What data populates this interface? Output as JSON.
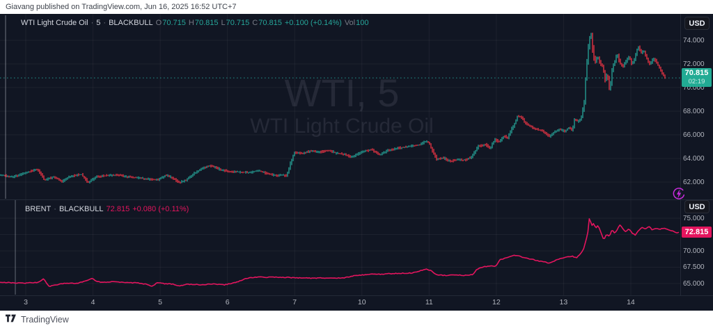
{
  "publisher_bar": {
    "text": "Giavang published on TradingView.com, Jun 16, 2025 16:52 UTC+7"
  },
  "footer": {
    "brand": "TradingView"
  },
  "time_axis": {
    "labels": [
      "3",
      "4",
      "5",
      "6",
      "7",
      "10",
      "11",
      "12",
      "13",
      "14"
    ]
  },
  "colors": {
    "background": "#111623",
    "grid": "rgba(255,255,255,0.05)",
    "up": "#26a69a",
    "down": "#f23645",
    "line": "#e4155e",
    "label_up_bg": "#22ab94",
    "label_line_bg": "#e4155e",
    "axis_text": "#b2b5be",
    "provider_icon": "#c92bdd"
  },
  "panes": {
    "wti": {
      "legend": {
        "symbol": "WTI Light Crude Oil",
        "sep": "·",
        "interval": "5",
        "exchange": "BLACKBULL",
        "o_label": "O",
        "o": "70.715",
        "h_label": "H",
        "h": "70.815",
        "l_label": "L",
        "l": "70.715",
        "c_label": "C",
        "c": "70.815",
        "change": "+0.100 (+0.14%)",
        "vol_label": "Vol",
        "vol": "100"
      },
      "watermark": {
        "line1": "WTI, 5",
        "line2": "WTI Light Crude Oil"
      },
      "axis": {
        "currency": "USD",
        "ticks": [
          "74.000",
          "72.000",
          "70.000",
          "68.000",
          "66.000",
          "64.000",
          "62.000"
        ],
        "last_price": "70.815",
        "countdown": "02:19"
      }
    },
    "brent": {
      "legend": {
        "symbol": "BRENT",
        "sep": "·",
        "exchange": "BLACKBULL",
        "last": "72.815",
        "change": "+0.080 (+0.11%)"
      },
      "axis": {
        "currency": "USD",
        "ticks": [
          "75.000",
          "72.500",
          "70.000",
          "67.500",
          "65.000"
        ],
        "last_price": "72.815"
      }
    }
  },
  "chart_data": [
    {
      "type": "candlestick",
      "name": "WTI Light Crude Oil",
      "interval_minutes": 5,
      "exchange": "BLACKBULL",
      "ohlc": {
        "open": 70.715,
        "high": 70.815,
        "low": 70.715,
        "close": 70.815,
        "change": 0.1,
        "change_pct": 0.14,
        "volume": 100
      },
      "last": 70.815,
      "countdown": "02:19",
      "x_day_labels": [
        "3",
        "4",
        "5",
        "6",
        "7",
        "10",
        "11",
        "12",
        "13",
        "14"
      ],
      "y_ticks": [
        74,
        72,
        70,
        68,
        66,
        64,
        62
      ],
      "ylim": [
        60.5,
        76.2
      ],
      "grid": true,
      "legend_position": "top-left",
      "samples_format": "[trading_day_index, price] where integer indices map to x_day_labels",
      "samples": [
        [
          -0.38,
          62.6
        ],
        [
          -0.18,
          62.45
        ],
        [
          0.03,
          62.8
        ],
        [
          0.19,
          63.1
        ],
        [
          0.29,
          62.15
        ],
        [
          0.43,
          62.45
        ],
        [
          0.55,
          62.05
        ],
        [
          0.68,
          62.5
        ],
        [
          0.84,
          62.65
        ],
        [
          0.94,
          61.95
        ],
        [
          1.07,
          62.45
        ],
        [
          1.22,
          62.55
        ],
        [
          1.38,
          62.6
        ],
        [
          1.53,
          62.45
        ],
        [
          1.69,
          62.35
        ],
        [
          1.84,
          62.25
        ],
        [
          1.98,
          62.2
        ],
        [
          2.1,
          62.6
        ],
        [
          2.23,
          62.25
        ],
        [
          2.29,
          61.95
        ],
        [
          2.39,
          62.15
        ],
        [
          2.52,
          62.75
        ],
        [
          2.67,
          63.25
        ],
        [
          2.78,
          63.4
        ],
        [
          2.91,
          63.05
        ],
        [
          3.03,
          62.9
        ],
        [
          3.19,
          62.85
        ],
        [
          3.35,
          62.8
        ],
        [
          3.47,
          63.0
        ],
        [
          3.6,
          62.7
        ],
        [
          3.74,
          62.55
        ],
        [
          3.84,
          62.6
        ],
        [
          3.89,
          62.5
        ],
        [
          3.95,
          63.6
        ],
        [
          4.01,
          64.5
        ],
        [
          4.13,
          64.4
        ],
        [
          4.26,
          64.65
        ],
        [
          4.38,
          64.5
        ],
        [
          4.5,
          64.7
        ],
        [
          4.63,
          64.45
        ],
        [
          4.75,
          64.35
        ],
        [
          4.87,
          64.1
        ],
        [
          5.0,
          64.55
        ],
        [
          5.16,
          64.75
        ],
        [
          5.28,
          64.3
        ],
        [
          5.4,
          64.7
        ],
        [
          5.52,
          64.85
        ],
        [
          5.64,
          64.95
        ],
        [
          5.78,
          65.1
        ],
        [
          5.88,
          65.15
        ],
        [
          5.95,
          65.45
        ],
        [
          6.01,
          65.35
        ],
        [
          6.06,
          64.7
        ],
        [
          6.12,
          63.95
        ],
        [
          6.22,
          64.05
        ],
        [
          6.33,
          63.75
        ],
        [
          6.43,
          63.9
        ],
        [
          6.53,
          63.85
        ],
        [
          6.64,
          64.1
        ],
        [
          6.74,
          65.0
        ],
        [
          6.85,
          65.2
        ],
        [
          6.92,
          64.85
        ],
        [
          6.99,
          65.6
        ],
        [
          7.05,
          65.4
        ],
        [
          7.13,
          65.9
        ],
        [
          7.18,
          65.7
        ],
        [
          7.24,
          66.5
        ],
        [
          7.29,
          67.0
        ],
        [
          7.33,
          67.6
        ],
        [
          7.38,
          67.5
        ],
        [
          7.46,
          66.9
        ],
        [
          7.54,
          66.65
        ],
        [
          7.62,
          66.45
        ],
        [
          7.71,
          66.3
        ],
        [
          7.8,
          65.85
        ],
        [
          7.87,
          66.2
        ],
        [
          7.95,
          66.45
        ],
        [
          8.03,
          66.3
        ],
        [
          8.09,
          66.6
        ],
        [
          8.14,
          66.4
        ],
        [
          8.18,
          67.35
        ],
        [
          8.23,
          67.1
        ],
        [
          8.27,
          67.3
        ],
        [
          8.32,
          68.8
        ],
        [
          8.35,
          71.5
        ],
        [
          8.38,
          73.4
        ],
        [
          8.42,
          74.75
        ],
        [
          8.45,
          73.0
        ],
        [
          8.48,
          72.1
        ],
        [
          8.52,
          72.7
        ],
        [
          8.56,
          72.0
        ],
        [
          8.6,
          71.8
        ],
        [
          8.63,
          70.6
        ],
        [
          8.66,
          71.2
        ],
        [
          8.7,
          69.6
        ],
        [
          8.74,
          71.8
        ],
        [
          8.78,
          72.3
        ],
        [
          8.81,
          72.9
        ],
        [
          8.85,
          72.1
        ],
        [
          8.9,
          71.75
        ],
        [
          8.95,
          72.35
        ],
        [
          8.99,
          72.6
        ],
        [
          9.03,
          72.0
        ],
        [
          9.07,
          72.45
        ],
        [
          9.12,
          73.5
        ],
        [
          9.17,
          72.95
        ],
        [
          9.21,
          73.1
        ],
        [
          9.26,
          72.3
        ],
        [
          9.3,
          72.0
        ],
        [
          9.35,
          72.5
        ],
        [
          9.39,
          72.2
        ],
        [
          9.44,
          71.65
        ],
        [
          9.49,
          71.15
        ],
        [
          9.53,
          70.82
        ]
      ]
    },
    {
      "type": "line",
      "name": "BRENT",
      "exchange": "BLACKBULL",
      "last": 72.815,
      "change": 0.08,
      "change_pct": 0.11,
      "x_day_labels": [
        "3",
        "4",
        "5",
        "6",
        "7",
        "10",
        "11",
        "12",
        "13",
        "14"
      ],
      "y_ticks": [
        75,
        72.5,
        70,
        67.5,
        65
      ],
      "ylim": [
        63.2,
        77.9
      ],
      "grid": true,
      "legend_position": "top-left",
      "samples_format": "[trading_day_index, price] where integer indices map to x_day_labels",
      "samples": [
        [
          -0.38,
          65.2
        ],
        [
          -0.07,
          65.05
        ],
        [
          0.19,
          65.15
        ],
        [
          0.27,
          65.75
        ],
        [
          0.34,
          64.55
        ],
        [
          0.45,
          64.8
        ],
        [
          0.6,
          65.05
        ],
        [
          0.76,
          65.0
        ],
        [
          0.88,
          65.35
        ],
        [
          0.99,
          65.8
        ],
        [
          1.07,
          65.25
        ],
        [
          1.17,
          65.2
        ],
        [
          1.33,
          65.3
        ],
        [
          1.48,
          65.15
        ],
        [
          1.66,
          65.1
        ],
        [
          1.81,
          64.85
        ],
        [
          1.87,
          64.5
        ],
        [
          1.95,
          65.1
        ],
        [
          2.05,
          65.0
        ],
        [
          2.19,
          64.9
        ],
        [
          2.29,
          64.65
        ],
        [
          2.41,
          64.9
        ],
        [
          2.52,
          64.85
        ],
        [
          2.64,
          64.8
        ],
        [
          2.72,
          64.95
        ],
        [
          2.83,
          64.9
        ],
        [
          2.95,
          64.8
        ],
        [
          3.09,
          65.05
        ],
        [
          3.16,
          65.3
        ],
        [
          3.26,
          65.7
        ],
        [
          3.35,
          65.9
        ],
        [
          3.45,
          66.0
        ],
        [
          3.57,
          65.95
        ],
        [
          3.71,
          66.0
        ],
        [
          3.84,
          65.95
        ],
        [
          3.97,
          65.9
        ],
        [
          4.12,
          65.85
        ],
        [
          4.28,
          65.8
        ],
        [
          4.43,
          65.85
        ],
        [
          4.59,
          65.8
        ],
        [
          4.74,
          65.9
        ],
        [
          4.92,
          66.25
        ],
        [
          5.11,
          66.4
        ],
        [
          5.31,
          66.45
        ],
        [
          5.52,
          66.55
        ],
        [
          5.73,
          66.6
        ],
        [
          5.88,
          67.0
        ],
        [
          5.95,
          67.25
        ],
        [
          6.04,
          66.9
        ],
        [
          6.12,
          66.3
        ],
        [
          6.25,
          66.25
        ],
        [
          6.4,
          66.3
        ],
        [
          6.56,
          66.25
        ],
        [
          6.65,
          66.4
        ],
        [
          6.71,
          67.2
        ],
        [
          6.81,
          67.55
        ],
        [
          6.92,
          67.7
        ],
        [
          6.99,
          67.6
        ],
        [
          7.05,
          68.6
        ],
        [
          7.14,
          68.9
        ],
        [
          7.23,
          69.25
        ],
        [
          7.3,
          69.3
        ],
        [
          7.4,
          69.0
        ],
        [
          7.51,
          68.75
        ],
        [
          7.61,
          68.5
        ],
        [
          7.72,
          68.3
        ],
        [
          7.79,
          68.1
        ],
        [
          7.87,
          68.5
        ],
        [
          7.96,
          68.8
        ],
        [
          8.05,
          69.05
        ],
        [
          8.13,
          69.2
        ],
        [
          8.19,
          68.9
        ],
        [
          8.24,
          69.4
        ],
        [
          8.3,
          70.3
        ],
        [
          8.34,
          71.9
        ],
        [
          8.37,
          73.3
        ],
        [
          8.39,
          76.0
        ],
        [
          8.41,
          73.6
        ],
        [
          8.44,
          74.3
        ],
        [
          8.48,
          73.4
        ],
        [
          8.51,
          73.9
        ],
        [
          8.55,
          73.0
        ],
        [
          8.6,
          71.6
        ],
        [
          8.64,
          72.6
        ],
        [
          8.68,
          72.2
        ],
        [
          8.72,
          73.2
        ],
        [
          8.76,
          72.7
        ],
        [
          8.8,
          73.3
        ],
        [
          8.84,
          74.0
        ],
        [
          8.88,
          73.4
        ],
        [
          8.92,
          72.9
        ],
        [
          8.97,
          73.4
        ],
        [
          9.02,
          72.7
        ],
        [
          9.07,
          72.4
        ],
        [
          9.12,
          73.2
        ],
        [
          9.17,
          73.6
        ],
        [
          9.22,
          73.3
        ],
        [
          9.27,
          73.8
        ],
        [
          9.32,
          73.2
        ],
        [
          9.37,
          73.5
        ],
        [
          9.42,
          73.3
        ],
        [
          9.47,
          73.45
        ],
        [
          9.53,
          73.4
        ],
        [
          9.6,
          73.1
        ],
        [
          9.65,
          72.9
        ],
        [
          9.69,
          72.75
        ],
        [
          9.72,
          72.85
        ]
      ]
    }
  ]
}
